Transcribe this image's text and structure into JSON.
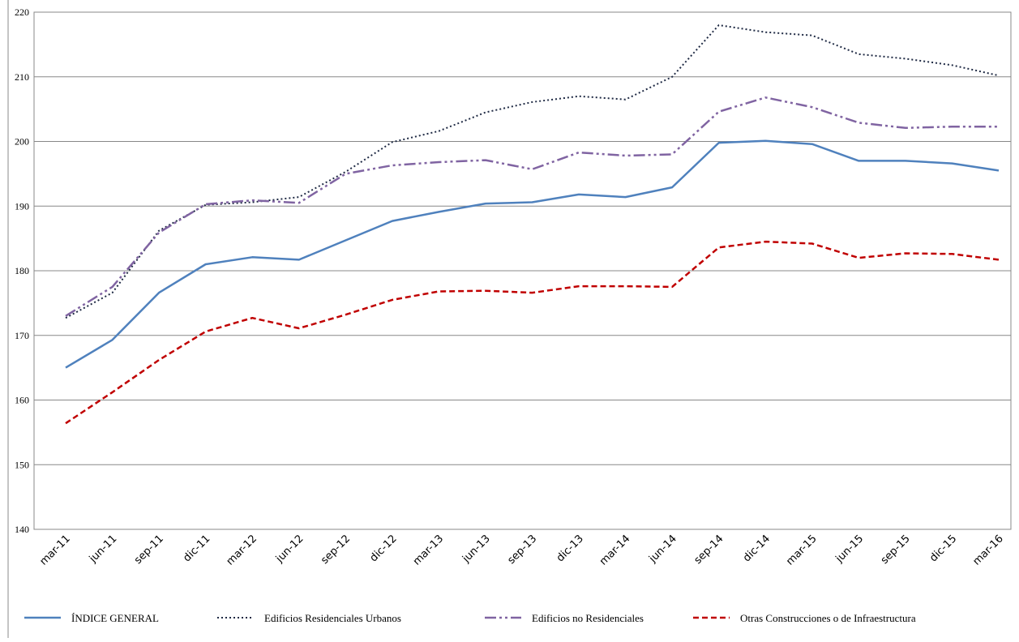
{
  "chart_data": {
    "type": "line",
    "categories": [
      "mar-11",
      "jun-11",
      "sep-11",
      "dic-11",
      "mar-12",
      "jun-12",
      "sep-12",
      "dic-12",
      "mar-13",
      "jun-13",
      "sep-13",
      "dic-13",
      "mar-14",
      "jun-14",
      "sep-14",
      "dic-14",
      "mar-15",
      "jun-15",
      "sep-15",
      "dic-15",
      "mar-16"
    ],
    "series": [
      {
        "name": "ÍNDICE GENERAL",
        "color": "#4f81bd",
        "dash": "solid",
        "values": [
          165,
          169.3,
          176.6,
          181,
          182.1,
          181.7,
          184.7,
          187.7,
          189.1,
          190.4,
          190.6,
          191.8,
          191.4,
          192.9,
          199.8,
          200.1,
          199.6,
          197,
          197,
          196.6,
          195.5
        ]
      },
      {
        "name": "Edificios Residenciales Urbanos",
        "color": "#1f2a44",
        "dash": "dotted",
        "values": [
          172.7,
          176.6,
          186.2,
          190.2,
          190.6,
          191.4,
          195.3,
          199.9,
          201.6,
          204.5,
          206.1,
          207,
          206.5,
          210,
          218,
          216.9,
          216.4,
          213.5,
          212.8,
          211.8,
          210.2
        ]
      },
      {
        "name": "Edificios no Residenciales",
        "color": "#8064a2",
        "dash": "dashdot",
        "values": [
          173,
          177.5,
          185.9,
          190.3,
          190.9,
          190.5,
          195,
          196.3,
          196.8,
          197.1,
          195.7,
          198.3,
          197.8,
          198,
          204.6,
          206.8,
          205.3,
          202.9,
          202.1,
          202.3,
          202.3
        ]
      },
      {
        "name": "Otras Construcciones o de Infraestructura",
        "color": "#c00000",
        "dash": "dashed",
        "values": [
          156.4,
          161.2,
          166.2,
          170.6,
          172.7,
          171.1,
          173.2,
          175.5,
          176.8,
          176.9,
          176.6,
          177.6,
          177.6,
          177.5,
          183.6,
          184.5,
          184.2,
          182,
          182.7,
          182.6,
          181.7
        ]
      }
    ],
    "ylim": [
      140,
      220
    ],
    "yticks": [
      140,
      150,
      160,
      170,
      180,
      190,
      200,
      210,
      220
    ],
    "grid": true,
    "legend": "bottom"
  }
}
